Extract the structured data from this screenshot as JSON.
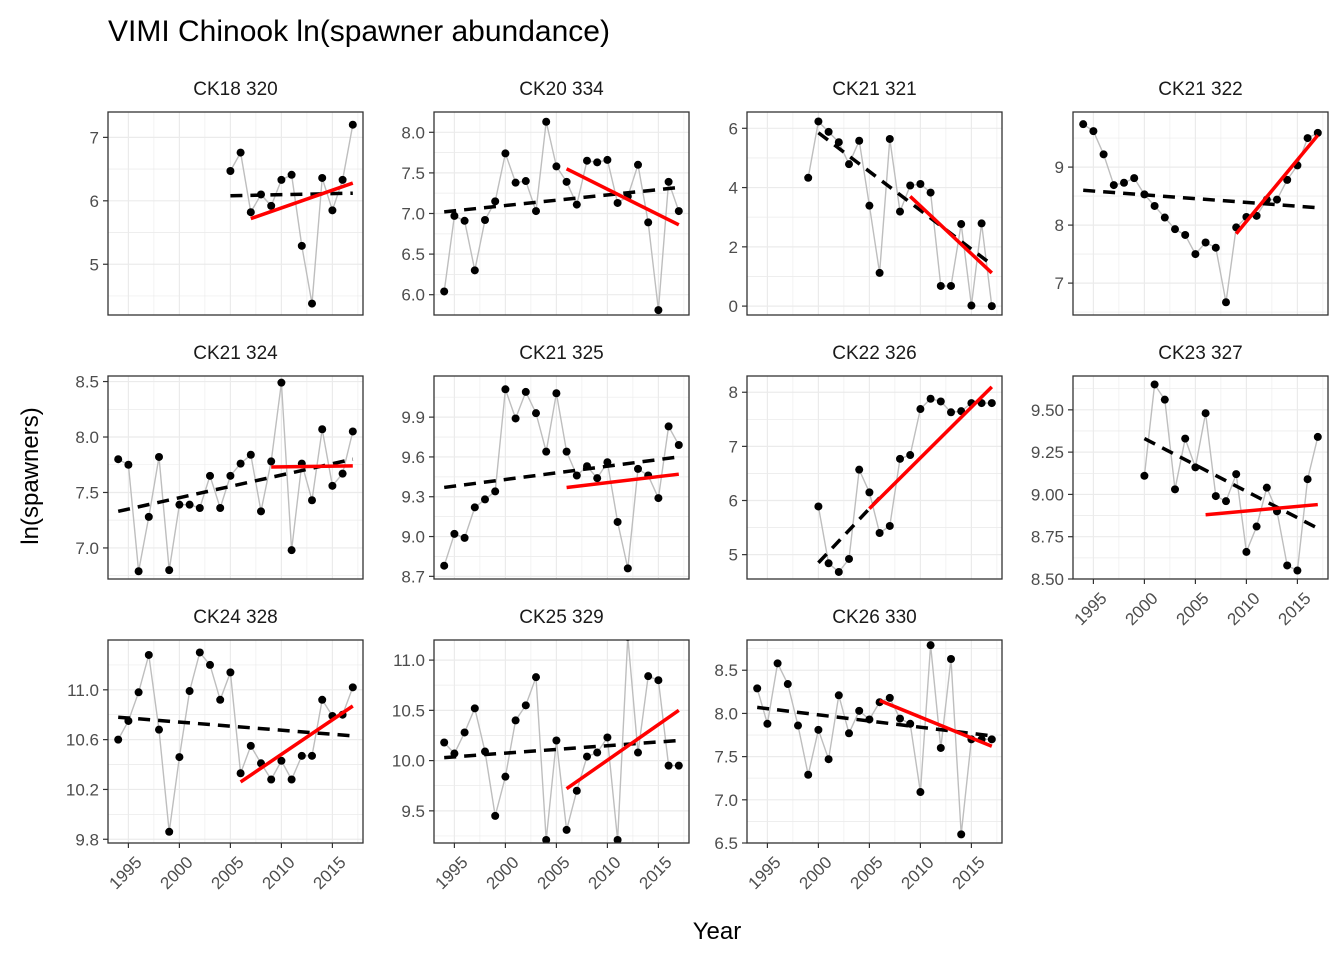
{
  "title": "VIMI Chinook ln(spawner abundance)",
  "xlabel": "Year",
  "ylabel": "ln(spawners)",
  "colors": {
    "points": "#000000",
    "connect_line": "#bebebe",
    "long_trend": "#000000",
    "recent_trend": "#ff0000",
    "grid": "#ebebeb",
    "frame": "#333333",
    "tick_text": "#4d4d4d"
  },
  "chart_data": [
    {
      "type": "line",
      "title": "CK18 320",
      "x": [
        2005,
        2006,
        2007,
        2008,
        2009,
        2010,
        2011,
        2012,
        2013,
        2014,
        2015,
        2016,
        2017
      ],
      "y": [
        6.47,
        6.76,
        5.82,
        6.1,
        5.92,
        6.33,
        6.41,
        5.29,
        4.38,
        6.36,
        5.85,
        6.33,
        7.2
      ],
      "ylim": [
        4.2,
        7.4
      ],
      "yticks": [
        5,
        6,
        7
      ],
      "long_trend": {
        "x": [
          2005,
          2017
        ],
        "y": [
          6.08,
          6.12
        ]
      },
      "recent_trend": {
        "x": [
          2007,
          2017
        ],
        "y": [
          5.72,
          6.28
        ]
      }
    },
    {
      "type": "line",
      "title": "CK20 334",
      "x": [
        1994,
        1995,
        1996,
        1997,
        1998,
        1999,
        2000,
        2001,
        2002,
        2003,
        2004,
        2005,
        2006,
        2007,
        2008,
        2009,
        2010,
        2011,
        2012,
        2013,
        2014,
        2015,
        2016,
        2017
      ],
      "y": [
        6.04,
        6.97,
        6.91,
        6.3,
        6.92,
        7.15,
        7.74,
        7.38,
        7.4,
        7.03,
        8.13,
        7.58,
        7.39,
        7.11,
        7.65,
        7.63,
        7.66,
        7.13,
        7.21,
        7.6,
        6.89,
        5.81,
        7.39,
        7.03
      ],
      "ylim": [
        5.75,
        8.25
      ],
      "yticks": [
        6.0,
        6.5,
        7.0,
        7.5,
        8.0
      ],
      "long_trend": {
        "x": [
          1994,
          2017
        ],
        "y": [
          7.02,
          7.32
        ]
      },
      "recent_trend": {
        "x": [
          2006,
          2017
        ],
        "y": [
          7.55,
          6.86
        ]
      }
    },
    {
      "type": "line",
      "title": "CK21 321",
      "x": [
        1999,
        2000,
        2001,
        2002,
        2003,
        2004,
        2005,
        2006,
        2007,
        2008,
        2009,
        2010,
        2011,
        2012,
        2013,
        2014,
        2015,
        2016,
        2017
      ],
      "y": [
        4.33,
        6.23,
        5.88,
        5.53,
        4.79,
        5.58,
        3.39,
        1.12,
        5.64,
        3.19,
        4.07,
        4.12,
        3.83,
        0.68,
        0.68,
        2.77,
        0.02,
        2.79,
        0.0
      ],
      "ylim": [
        -0.3,
        6.55
      ],
      "yticks": [
        0,
        2,
        4,
        6
      ],
      "long_trend": {
        "x": [
          2000,
          2017
        ],
        "y": [
          5.85,
          1.4
        ]
      },
      "recent_trend": {
        "x": [
          2009,
          2017
        ],
        "y": [
          3.7,
          1.12
        ]
      },
      "ylim_note": ""
    },
    {
      "type": "line",
      "title": "CK21 322",
      "x": [
        1994,
        1995,
        1996,
        1997,
        1998,
        1999,
        2000,
        2001,
        2002,
        2003,
        2004,
        2005,
        2006,
        2007,
        2008,
        2009,
        2010,
        2011,
        2012,
        2013,
        2014,
        2015,
        2016,
        2017
      ],
      "y": [
        9.74,
        9.62,
        9.22,
        8.69,
        8.73,
        8.81,
        8.53,
        8.33,
        8.13,
        7.93,
        7.83,
        7.5,
        7.7,
        7.61,
        6.67,
        7.96,
        8.14,
        8.16,
        8.44,
        8.44,
        8.78,
        9.03,
        9.5,
        9.59
      ],
      "ylim": [
        6.45,
        9.95
      ],
      "yticks": [
        7,
        8,
        9
      ],
      "long_trend": {
        "x": [
          1994,
          2017
        ],
        "y": [
          8.6,
          8.3
        ]
      },
      "recent_trend": {
        "x": [
          2009,
          2017
        ],
        "y": [
          7.85,
          9.55
        ]
      }
    },
    {
      "type": "line",
      "title": "CK21 324",
      "x": [
        1994,
        1995,
        1996,
        1997,
        1998,
        1999,
        2000,
        2001,
        2002,
        2003,
        2004,
        2005,
        2006,
        2007,
        2008,
        2009,
        2010,
        2011,
        2012,
        2013,
        2014,
        2015,
        2016,
        2017
      ],
      "y": [
        7.8,
        7.75,
        6.79,
        7.28,
        7.82,
        6.8,
        7.39,
        7.39,
        7.36,
        7.65,
        7.36,
        7.65,
        7.76,
        7.84,
        7.33,
        7.78,
        8.49,
        6.98,
        7.76,
        7.43,
        8.07,
        7.56,
        7.67,
        8.05
      ],
      "ylim": [
        6.72,
        8.55
      ],
      "yticks": [
        7.0,
        7.5,
        8.0,
        8.5
      ],
      "long_trend": {
        "x": [
          1994,
          2017
        ],
        "y": [
          7.33,
          7.8
        ]
      },
      "recent_trend": {
        "x": [
          2009,
          2017
        ],
        "y": [
          7.73,
          7.74
        ]
      }
    },
    {
      "type": "line",
      "title": "CK21 325",
      "x": [
        1994,
        1995,
        1996,
        1997,
        1998,
        1999,
        2000,
        2001,
        2002,
        2003,
        2004,
        2005,
        2006,
        2007,
        2008,
        2009,
        2010,
        2011,
        2012,
        2013,
        2014,
        2015,
        2016,
        2017
      ],
      "y": [
        8.78,
        9.02,
        8.99,
        9.22,
        9.28,
        9.34,
        10.11,
        9.89,
        10.09,
        9.93,
        9.64,
        10.08,
        9.64,
        9.46,
        9.53,
        9.44,
        9.56,
        9.11,
        8.76,
        9.51,
        9.46,
        9.29,
        9.83,
        9.69
      ],
      "ylim": [
        8.68,
        10.21
      ],
      "yticks": [
        8.7,
        9.0,
        9.3,
        9.6,
        9.9
      ],
      "long_trend": {
        "x": [
          1994,
          2017
        ],
        "y": [
          9.37,
          9.6
        ]
      },
      "recent_trend": {
        "x": [
          2006,
          2017
        ],
        "y": [
          9.37,
          9.47
        ]
      }
    },
    {
      "type": "line",
      "title": "CK22 326",
      "x": [
        2000,
        2001,
        2002,
        2003,
        2004,
        2005,
        2006,
        2007,
        2008,
        2009,
        2010,
        2011,
        2012,
        2013,
        2014,
        2015,
        2016,
        2017
      ],
      "y": [
        5.89,
        4.84,
        4.68,
        4.92,
        6.57,
        6.15,
        5.4,
        5.53,
        6.77,
        6.84,
        7.69,
        7.88,
        7.83,
        7.63,
        7.65,
        7.8,
        7.8,
        7.8
      ],
      "ylim": [
        4.55,
        8.3
      ],
      "yticks": [
        5,
        6,
        7,
        8
      ],
      "long_trend": {
        "x": [
          2000,
          2006
        ],
        "y": [
          4.85,
          6.05
        ]
      },
      "recent_trend": {
        "x": [
          2005,
          2017
        ],
        "y": [
          5.85,
          8.1
        ]
      }
    },
    {
      "type": "line",
      "title": "CK23 327",
      "x": [
        2000,
        2001,
        2002,
        2003,
        2004,
        2005,
        2006,
        2007,
        2008,
        2009,
        2010,
        2011,
        2012,
        2013,
        2014,
        2015,
        2016,
        2017
      ],
      "y": [
        9.11,
        9.65,
        9.56,
        9.03,
        9.33,
        9.16,
        9.48,
        8.99,
        8.96,
        9.12,
        8.66,
        8.81,
        9.04,
        8.9,
        8.58,
        8.55,
        9.09,
        9.34
      ],
      "ylim": [
        8.5,
        9.7
      ],
      "yticks": [
        8.5,
        8.75,
        9.0,
        9.25,
        9.5
      ],
      "long_trend": {
        "x": [
          2000,
          2017
        ],
        "y": [
          9.33,
          8.8
        ]
      },
      "recent_trend": {
        "x": [
          2006,
          2017
        ],
        "y": [
          8.88,
          8.94
        ]
      }
    },
    {
      "type": "line",
      "title": "CK24 328",
      "x": [
        1994,
        1995,
        1996,
        1997,
        1998,
        1999,
        2000,
        2001,
        2002,
        2003,
        2004,
        2005,
        2006,
        2007,
        2008,
        2009,
        2010,
        2011,
        2012,
        2013,
        2014,
        2015,
        2016,
        2017
      ],
      "y": [
        10.6,
        10.75,
        10.98,
        11.28,
        10.68,
        9.86,
        10.46,
        10.99,
        11.3,
        11.2,
        10.92,
        11.14,
        10.33,
        10.55,
        10.41,
        10.28,
        10.43,
        10.28,
        10.47,
        10.47,
        10.92,
        10.79,
        10.8,
        11.02
      ],
      "ylim": [
        9.77,
        11.4
      ],
      "yticks": [
        9.8,
        10.2,
        10.6,
        11.0
      ],
      "long_trend": {
        "x": [
          1994,
          2017
        ],
        "y": [
          10.78,
          10.63
        ]
      },
      "recent_trend": {
        "x": [
          2006,
          2017
        ],
        "y": [
          10.26,
          10.87
        ]
      }
    },
    {
      "type": "line",
      "title": "CK25 329",
      "x": [
        1994,
        1995,
        1996,
        1997,
        1998,
        1999,
        2000,
        2001,
        2002,
        2003,
        2004,
        2005,
        2006,
        2007,
        2008,
        2009,
        2010,
        2011,
        2012,
        2013,
        2014,
        2015,
        2016,
        2017
      ],
      "y": [
        10.18,
        10.07,
        10.28,
        10.52,
        10.09,
        9.45,
        9.84,
        10.4,
        10.55,
        10.83,
        9.21,
        10.2,
        9.31,
        9.7,
        10.04,
        10.08,
        10.23,
        9.21,
        11.23,
        10.08,
        10.84,
        10.8,
        9.95,
        9.95
      ],
      "ylim": [
        9.18,
        11.2
      ],
      "yticks": [
        9.5,
        10.0,
        10.5,
        11.0
      ],
      "long_trend": {
        "x": [
          1994,
          2017
        ],
        "y": [
          10.03,
          10.2
        ]
      },
      "recent_trend": {
        "x": [
          2006,
          2017
        ],
        "y": [
          9.72,
          10.5
        ]
      }
    },
    {
      "type": "line",
      "title": "CK26 330",
      "x": [
        1994,
        1995,
        1996,
        1997,
        1998,
        1999,
        2000,
        2001,
        2002,
        2003,
        2004,
        2005,
        2006,
        2007,
        2008,
        2009,
        2010,
        2011,
        2012,
        2013,
        2014,
        2015,
        2016,
        2017
      ],
      "y": [
        8.29,
        7.88,
        8.58,
        8.34,
        7.86,
        7.29,
        7.81,
        7.47,
        8.21,
        7.77,
        8.03,
        7.93,
        8.13,
        8.18,
        7.94,
        7.88,
        7.09,
        8.79,
        7.6,
        8.63,
        6.6,
        7.7,
        7.7,
        7.7
      ],
      "ylim": [
        6.5,
        8.85
      ],
      "yticks": [
        6.5,
        7.0,
        7.5,
        8.0,
        8.5
      ],
      "long_trend": {
        "x": [
          1994,
          2017
        ],
        "y": [
          8.07,
          7.74
        ]
      },
      "recent_trend": {
        "x": [
          2006,
          2017
        ],
        "y": [
          8.15,
          7.62
        ]
      }
    }
  ],
  "xlim": [
    1993,
    2018
  ],
  "xticks": [
    "1995",
    "2000",
    "2005",
    "2010",
    "2015"
  ]
}
